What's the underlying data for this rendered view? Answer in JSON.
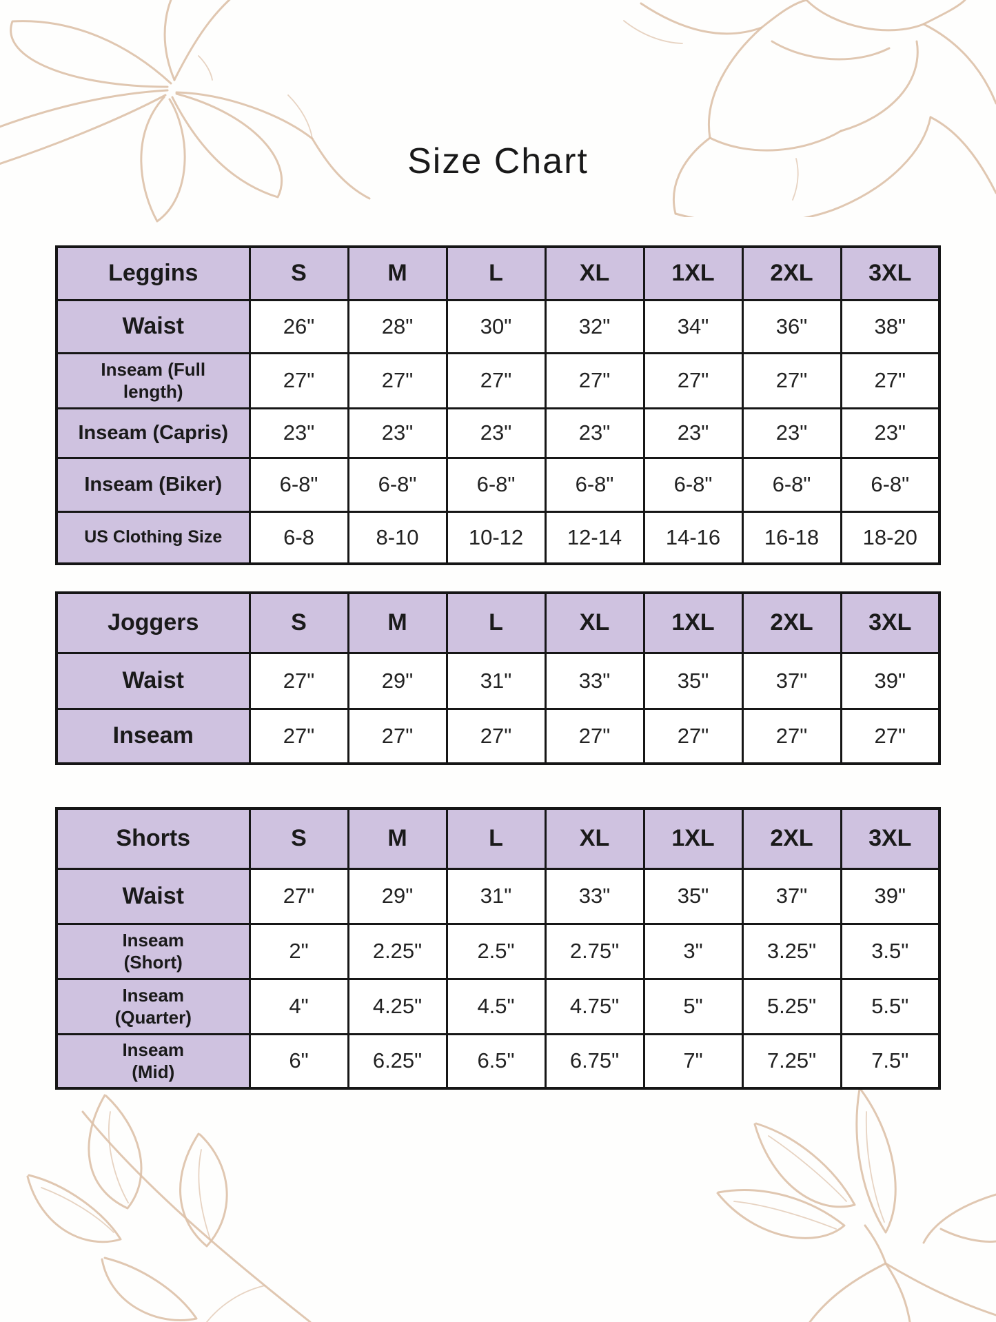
{
  "page": {
    "title": "Size Chart"
  },
  "colors": {
    "header_bg": "#cfc2e0",
    "table_border": "#161616",
    "floral_line": "#ddc1a8",
    "text": "#1e1e1e"
  },
  "tables": [
    {
      "name": "Leggins",
      "columns": [
        "S",
        "M",
        "L",
        "XL",
        "1XL",
        "2XL",
        "3XL"
      ],
      "rows": [
        {
          "label": "Waist",
          "values": [
            "26\"",
            "28\"",
            "30\"",
            "32\"",
            "34\"",
            "36\"",
            "38\""
          ]
        },
        {
          "label": "Inseam (Full\nlength)",
          "values": [
            "27\"",
            "27\"",
            "27\"",
            "27\"",
            "27\"",
            "27\"",
            "27\""
          ]
        },
        {
          "label": "Inseam (Capris)",
          "values": [
            "23\"",
            "23\"",
            "23\"",
            "23\"",
            "23\"",
            "23\"",
            "23\""
          ]
        },
        {
          "label": "Inseam (Biker)",
          "values": [
            "6-8\"",
            "6-8\"",
            "6-8\"",
            "6-8\"",
            "6-8\"",
            "6-8\"",
            "6-8\""
          ]
        },
        {
          "label": "US Clothing Size",
          "values": [
            "6-8",
            "8-10",
            "10-12",
            "12-14",
            "14-16",
            "16-18",
            "18-20"
          ]
        }
      ]
    },
    {
      "name": "Joggers",
      "columns": [
        "S",
        "M",
        "L",
        "XL",
        "1XL",
        "2XL",
        "3XL"
      ],
      "rows": [
        {
          "label": "Waist",
          "values": [
            "27\"",
            "29\"",
            "31\"",
            "33\"",
            "35\"",
            "37\"",
            "39\""
          ]
        },
        {
          "label": "Inseam",
          "values": [
            "27\"",
            "27\"",
            "27\"",
            "27\"",
            "27\"",
            "27\"",
            "27\""
          ]
        }
      ]
    },
    {
      "name": "Shorts",
      "columns": [
        "S",
        "M",
        "L",
        "XL",
        "1XL",
        "2XL",
        "3XL"
      ],
      "rows": [
        {
          "label": "Waist",
          "values": [
            "27\"",
            "29\"",
            "31\"",
            "33\"",
            "35\"",
            "37\"",
            "39\""
          ]
        },
        {
          "label": "Inseam\n(Short)",
          "values": [
            "2\"",
            "2.25\"",
            "2.5\"",
            "2.75\"",
            "3\"",
            "3.25\"",
            "3.5\""
          ]
        },
        {
          "label": "Inseam\n(Quarter)",
          "values": [
            "4\"",
            "4.25\"",
            "4.5\"",
            "4.75\"",
            "5\"",
            "5.25\"",
            "5.5\""
          ]
        },
        {
          "label": "Inseam\n(Mid)",
          "values": [
            "6\"",
            "6.25\"",
            "6.5\"",
            "6.75\"",
            "7\"",
            "7.25\"",
            "7.5\""
          ]
        }
      ]
    }
  ]
}
